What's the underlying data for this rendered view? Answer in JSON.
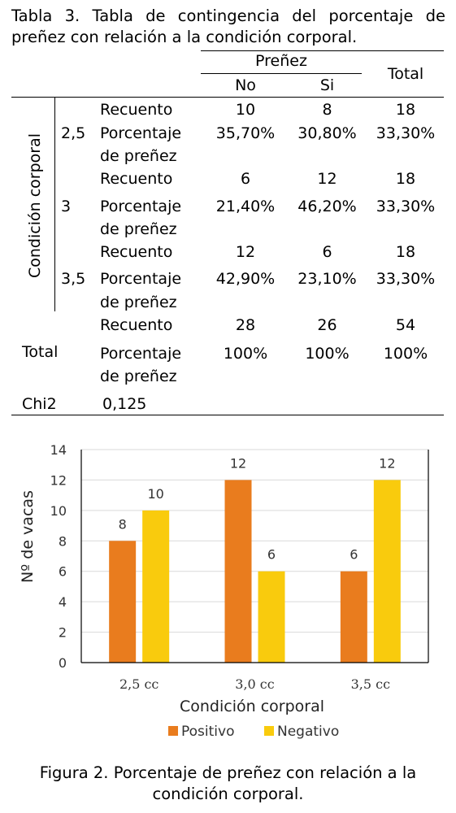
{
  "table": {
    "caption": "Tabla 3. Tabla de contingencia del porcentaje de preñez con relación a la condición corporal.",
    "header_group": "Preñez",
    "header_no": "No",
    "header_si": "Si",
    "header_total": "Total",
    "row_group_label": "Condición corporal",
    "groups": [
      {
        "level": "2,5",
        "count_label": "Recuento",
        "count": [
          "10",
          "8",
          "18"
        ],
        "pct_label_1": "Porcentaje",
        "pct_label_2": "de preñez",
        "pct": [
          "35,70%",
          "30,80%",
          "33,30%"
        ]
      },
      {
        "level": "3",
        "count_label": "Recuento",
        "count": [
          "6",
          "12",
          "18"
        ],
        "pct_label_1": "Porcentaje",
        "pct_label_2": "de preñez",
        "pct": [
          "21,40%",
          "46,20%",
          "33,30%"
        ]
      },
      {
        "level": "3,5",
        "count_label": "Recuento",
        "count": [
          "12",
          "6",
          "18"
        ],
        "pct_label_1": "Porcentaje",
        "pct_label_2": "de preñez",
        "pct": [
          "42,90%",
          "23,10%",
          "33,30%"
        ]
      }
    ],
    "total": {
      "label": "Total",
      "count_label": "Recuento",
      "count": [
        "28",
        "26",
        "54"
      ],
      "pct_label_1": "Porcentaje",
      "pct_label_2": "de preñez",
      "pct": [
        "100%",
        "100%",
        "100%"
      ]
    },
    "chi2_label": "Chi2",
    "chi2_value": "0,125"
  },
  "chart_data": {
    "type": "bar",
    "categories": [
      "2,5 cc",
      "3,0 cc",
      "3,5 cc"
    ],
    "series": [
      {
        "name": "Positivo",
        "values": [
          8,
          12,
          6
        ],
        "color": "#E97C1E"
      },
      {
        "name": "Negativo",
        "values": [
          10,
          6,
          12
        ],
        "color": "#F9CB0D"
      }
    ],
    "xlabel": "Condición corporal",
    "ylabel": "Nº de vacas",
    "ylim": [
      0,
      14
    ],
    "yticks": [
      "0",
      "2",
      "4",
      "6",
      "8",
      "10",
      "12",
      "14"
    ],
    "data_labels": true,
    "grid": true,
    "legend": "bottom"
  },
  "figure_caption": "Figura 2. Porcentaje de preñez con relación a la condición corporal."
}
